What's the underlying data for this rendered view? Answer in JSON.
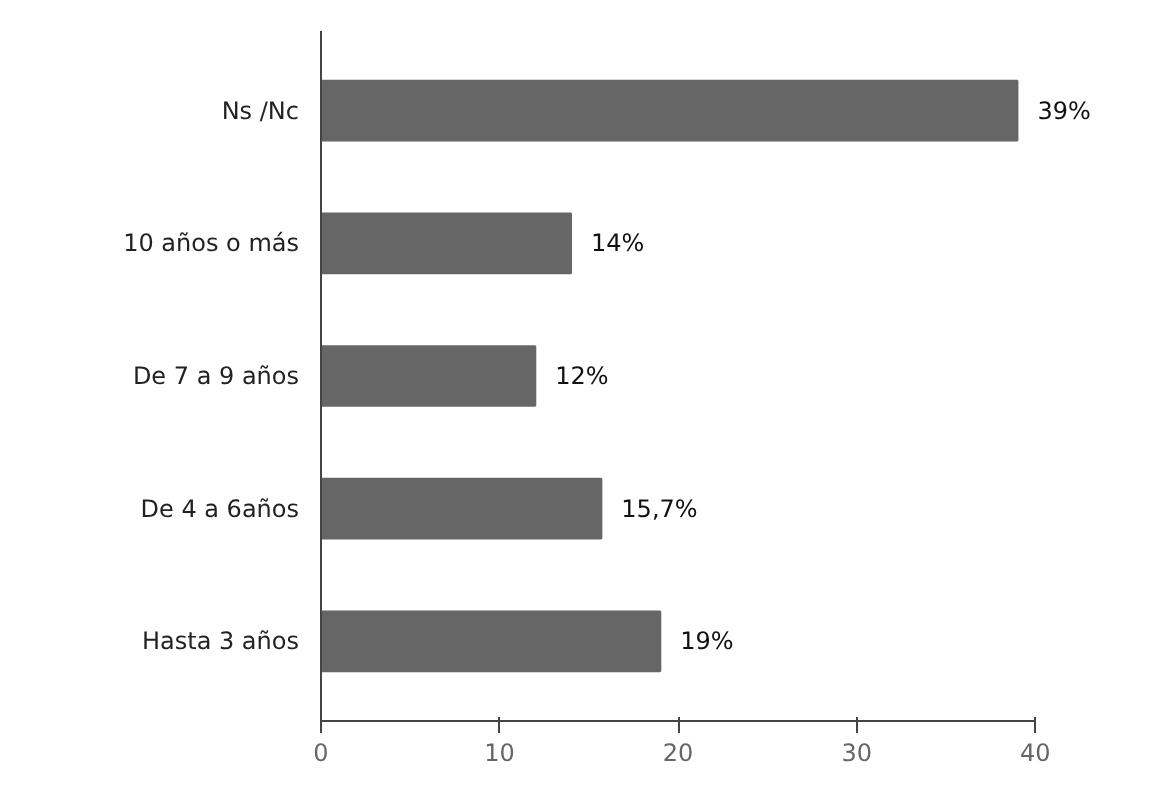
{
  "chart_data": {
    "type": "bar",
    "orientation": "horizontal",
    "categories": [
      "Ns /Nc",
      "10 años o más",
      "De 7 a 9 años",
      "De 4 a 6años",
      "Hasta 3 años"
    ],
    "values": [
      39,
      14,
      12,
      15.7,
      19
    ],
    "value_labels": [
      "39%",
      "14%",
      "12%",
      "15,7%",
      "19%"
    ],
    "color": "#666666",
    "xlim": [
      0,
      40
    ],
    "xticks": [
      0,
      10,
      20,
      30,
      40
    ],
    "grid": false
  }
}
